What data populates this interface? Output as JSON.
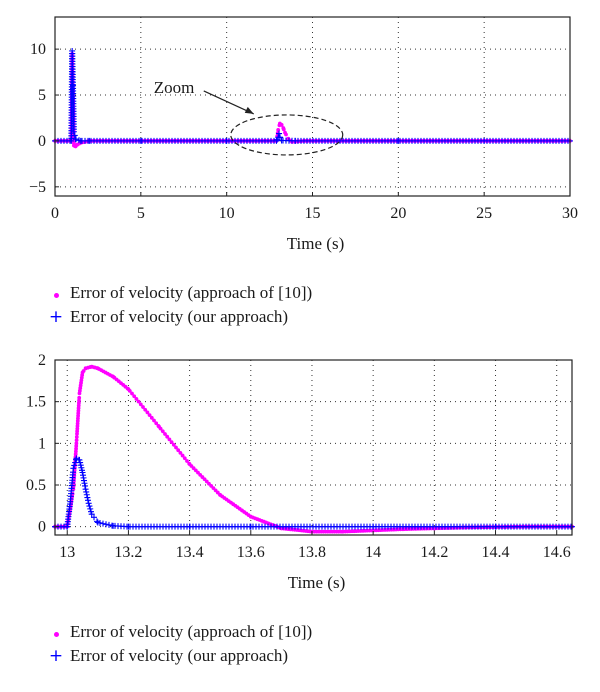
{
  "colors": {
    "approach10": "#ff00ff",
    "ours": "#0000ff"
  },
  "chart_data": [
    {
      "type": "scatter",
      "title": "",
      "xlabel": "Time (s)",
      "ylabel": "",
      "xlim": [
        0,
        30
      ],
      "ylim": [
        -6,
        13.5
      ],
      "xticks": [
        0,
        5,
        10,
        15,
        20,
        25,
        30
      ],
      "yticks": [
        10,
        5,
        0,
        -5
      ],
      "grid": true,
      "annotation": {
        "text": "Zoom",
        "target_x": 13.5,
        "target_y": 0
      },
      "series": [
        {
          "name": "Error of velocity (approach of [10])",
          "marker": "dot",
          "x": [
            0,
            0.95,
            1.0,
            1.05,
            1.1,
            1.2,
            1.3,
            1.5,
            2.0,
            5,
            10,
            12.9,
            13.0,
            13.1,
            13.2,
            13.3,
            13.4,
            13.6,
            13.8,
            14.5,
            20,
            25,
            30
          ],
          "y": [
            0,
            0,
            9.5,
            5.0,
            -0.5,
            -0.6,
            -0.4,
            -0.2,
            0,
            0,
            0,
            0,
            1.2,
            1.9,
            1.75,
            1.4,
            0.9,
            0.2,
            -0.1,
            0,
            0,
            0,
            0
          ]
        },
        {
          "name": "Error of velocity (our approach)",
          "marker": "plus",
          "x": [
            0,
            0.95,
            1.0,
            1.05,
            1.1,
            1.2,
            1.5,
            2.0,
            5,
            10,
            12.9,
            13.0,
            13.05,
            13.1,
            13.2,
            14,
            20,
            25,
            30
          ],
          "y": [
            0,
            0,
            9.8,
            6.0,
            1.0,
            0.2,
            0,
            0,
            0,
            0,
            0,
            0.4,
            0.8,
            0.4,
            0.05,
            0,
            0,
            0,
            0
          ]
        }
      ]
    },
    {
      "type": "scatter",
      "title": "",
      "xlabel": "Time (s)",
      "ylabel": "",
      "xlim": [
        12.96,
        14.65
      ],
      "ylim": [
        -0.1,
        2.0
      ],
      "xticks": [
        13,
        13.2,
        13.4,
        13.6,
        13.8,
        14,
        14.2,
        14.4,
        14.6
      ],
      "yticks": [
        0,
        0.5,
        1,
        1.5,
        2
      ],
      "grid": true,
      "series": [
        {
          "name": "Error of velocity (approach of [10])",
          "marker": "dot",
          "x": [
            12.96,
            13.0,
            13.02,
            13.03,
            13.04,
            13.05,
            13.06,
            13.08,
            13.1,
            13.15,
            13.2,
            13.3,
            13.4,
            13.5,
            13.6,
            13.7,
            13.8,
            13.9,
            14.0,
            14.1,
            14.2,
            14.3,
            14.4,
            14.5,
            14.65
          ],
          "y": [
            0,
            0,
            0.45,
            1.0,
            1.6,
            1.85,
            1.9,
            1.92,
            1.9,
            1.8,
            1.65,
            1.2,
            0.75,
            0.38,
            0.12,
            -0.02,
            -0.06,
            -0.06,
            -0.045,
            -0.03,
            -0.02,
            -0.01,
            -0.005,
            0,
            0
          ]
        },
        {
          "name": "Error of velocity (our approach)",
          "marker": "plus",
          "x": [
            12.96,
            13.0,
            13.01,
            13.02,
            13.03,
            13.04,
            13.05,
            13.06,
            13.07,
            13.08,
            13.1,
            13.15,
            13.2,
            13.4,
            13.6,
            14.0,
            14.4,
            14.65
          ],
          "y": [
            0,
            0,
            0.3,
            0.7,
            0.82,
            0.8,
            0.65,
            0.45,
            0.28,
            0.15,
            0.05,
            0.01,
            0,
            0,
            0,
            0,
            0,
            0
          ]
        }
      ]
    }
  ]
}
